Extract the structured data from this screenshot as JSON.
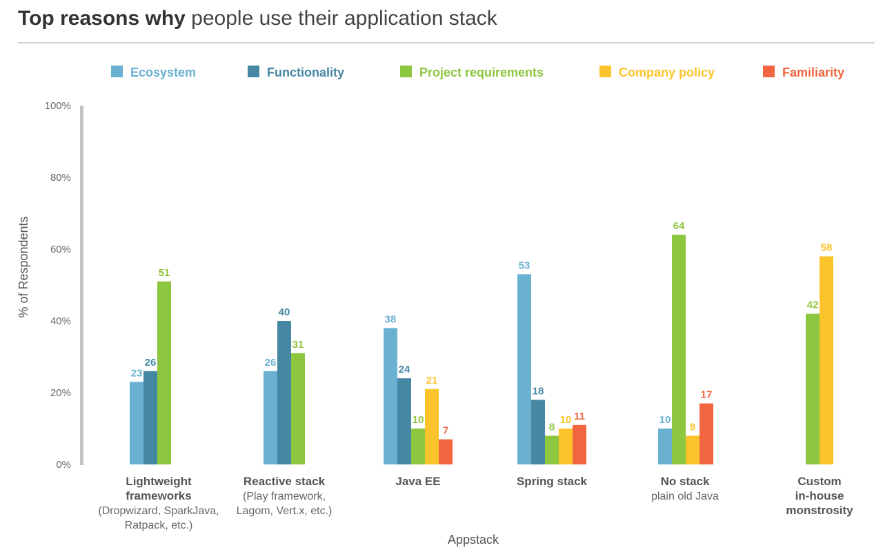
{
  "title": {
    "bold": "Top reasons why",
    "light": "people use their application stack"
  },
  "chart_data": {
    "type": "bar",
    "title": "Top reasons why people use their application stack",
    "xlabel": "Appstack",
    "ylabel": "% of Respondents",
    "ylim": [
      0,
      100
    ],
    "yticks": [
      "0%",
      "20%",
      "40%",
      "60%",
      "80%",
      "100%"
    ],
    "legend_position": "top",
    "categories": [
      {
        "name": "Lightweight frameworks",
        "lines": [
          "Lightweight",
          "frameworks"
        ],
        "sub": [
          "(Dropwizard, SparkJava,",
          "Ratpack, etc.)"
        ]
      },
      {
        "name": "Reactive stack",
        "lines": [
          "Reactive stack"
        ],
        "sub": [
          "(Play framework,",
          "Lagom, Vert.x, etc.)"
        ]
      },
      {
        "name": "Java EE",
        "lines": [
          "Java EE"
        ],
        "sub": []
      },
      {
        "name": "Spring stack",
        "lines": [
          "Spring stack"
        ],
        "sub": []
      },
      {
        "name": "No stack",
        "lines": [
          "No stack"
        ],
        "sub": [
          "plain old Java"
        ]
      },
      {
        "name": "Custom in-house monstrosity",
        "lines": [
          "Custom",
          "in-house",
          "monstrosity"
        ],
        "sub": []
      }
    ],
    "series": [
      {
        "name": "Ecosystem",
        "color": "#6ab0d0",
        "values": [
          23,
          26,
          38,
          53,
          10,
          null
        ]
      },
      {
        "name": "Functionality",
        "color": "#4687a3",
        "values": [
          26,
          40,
          24,
          18,
          null,
          null
        ]
      },
      {
        "name": "Project requirements",
        "color": "#8dc63f",
        "values": [
          51,
          31,
          10,
          8,
          64,
          42
        ]
      },
      {
        "name": "Company policy",
        "color": "#fcc42c",
        "values": [
          null,
          null,
          21,
          10,
          8,
          58
        ]
      },
      {
        "name": "Familiarity",
        "color": "#f16640",
        "values": [
          null,
          null,
          7,
          11,
          17,
          null
        ]
      }
    ]
  }
}
